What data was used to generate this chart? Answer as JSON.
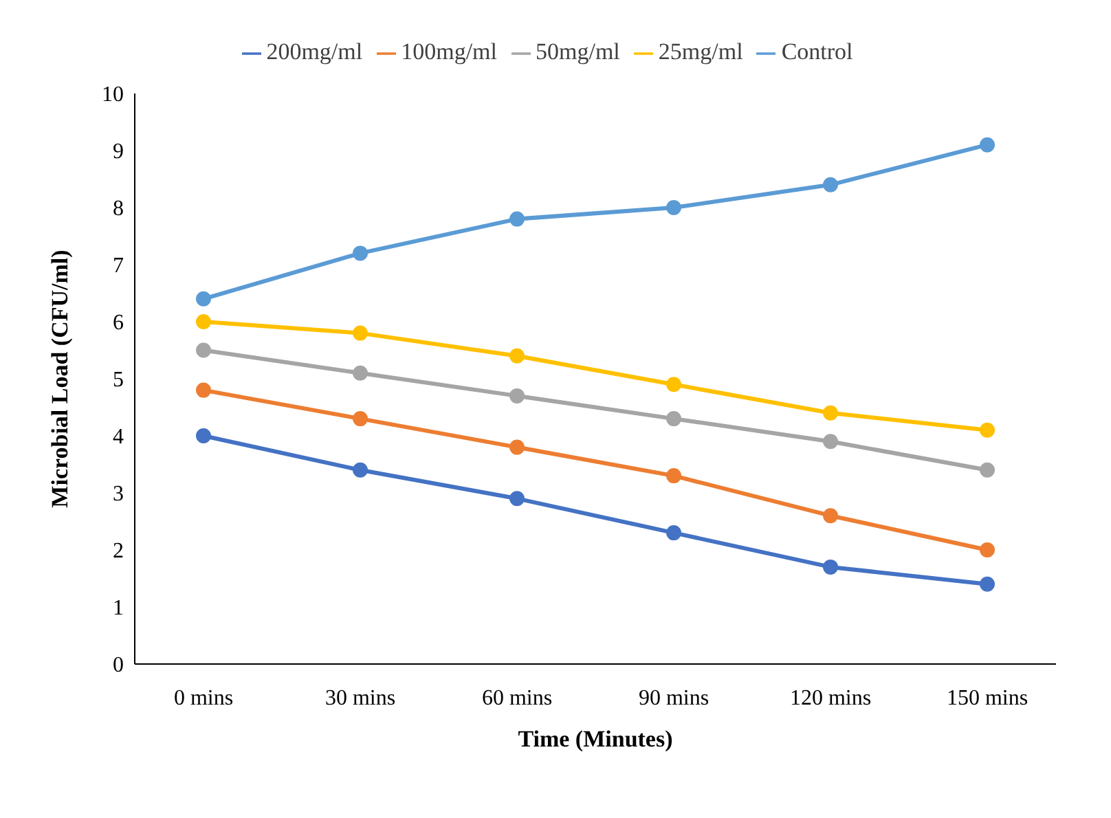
{
  "chart_data": {
    "type": "line",
    "xlabel": "Time (Minutes)",
    "ylabel": "Microbial Load (CFU/ml)",
    "categories": [
      "0 mins",
      "30 mins",
      "60 mins",
      "90 mins",
      "120 mins",
      "150 mins"
    ],
    "series": [
      {
        "name": "200mg/ml",
        "color": "#4472c4",
        "values": [
          4.0,
          3.4,
          2.9,
          2.3,
          1.7,
          1.4
        ]
      },
      {
        "name": "100mg/ml",
        "color": "#ed7d31",
        "values": [
          4.8,
          4.3,
          3.8,
          3.3,
          2.6,
          2.0
        ]
      },
      {
        "name": "50mg/ml",
        "color": "#a5a5a5",
        "values": [
          5.5,
          5.1,
          4.7,
          4.3,
          3.9,
          3.4
        ]
      },
      {
        "name": "25mg/ml",
        "color": "#ffc000",
        "values": [
          6.0,
          5.8,
          5.4,
          4.9,
          4.4,
          4.1
        ]
      },
      {
        "name": "Control",
        "color": "#5b9bd5",
        "values": [
          6.4,
          7.2,
          7.8,
          8.0,
          8.4,
          9.1
        ]
      }
    ],
    "ylim": [
      0,
      10
    ],
    "yticks": [
      0,
      1,
      2,
      3,
      4,
      5,
      6,
      7,
      8,
      9,
      10
    ],
    "grid": false,
    "legend": "top",
    "marker": "circle",
    "line_style": "solid"
  }
}
